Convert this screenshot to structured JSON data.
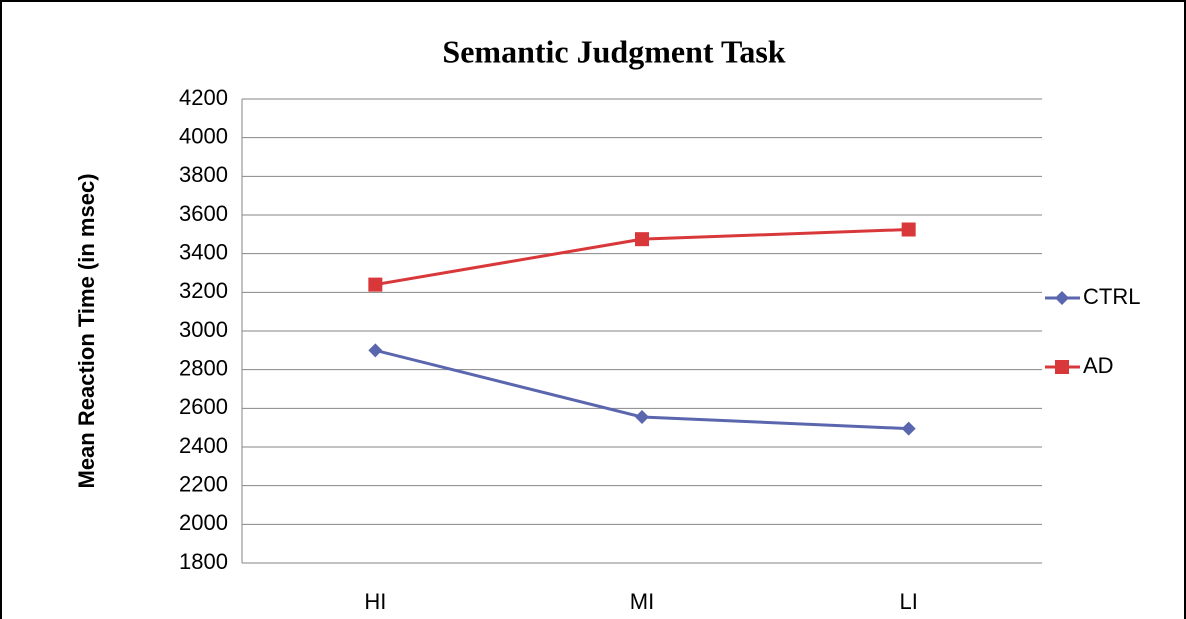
{
  "chart_data": {
    "type": "line",
    "title": "Semantic Judgment Task",
    "y_label": "Mean Reaction Time (in msec)",
    "categories": [
      "HI",
      "MI",
      "LI"
    ],
    "series": [
      {
        "name": "CTRL",
        "color": "#5a67ae",
        "marker": "diamond",
        "values": [
          2900,
          2555,
          2495
        ]
      },
      {
        "name": "AD",
        "color": "#d9383a",
        "marker": "square",
        "values": [
          3240,
          3475,
          3525
        ]
      }
    ],
    "ylim": [
      1800,
      4200
    ],
    "yticks": [
      1800,
      2000,
      2200,
      2400,
      2600,
      2800,
      3000,
      3200,
      3400,
      3600,
      3800,
      4000,
      4200
    ],
    "grid": true,
    "legend": "right"
  }
}
